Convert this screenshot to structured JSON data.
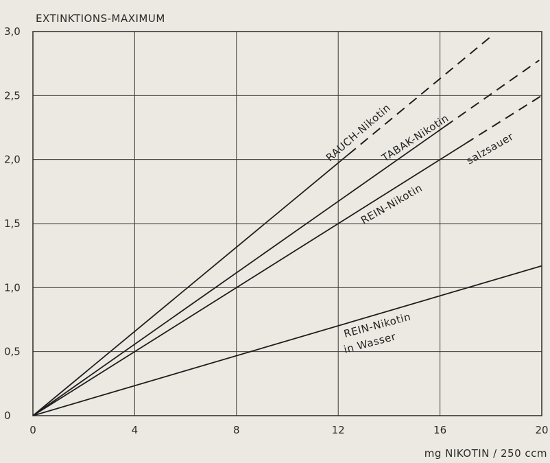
{
  "chart_data": {
    "type": "line",
    "ylabel": "EXTINKTIONS-MAXIMUM",
    "xlabel": "mg  NIKOTIN / 250 ccm",
    "xlim": [
      0,
      20
    ],
    "ylim": [
      0,
      3.0
    ],
    "x_ticks": [
      "0",
      "4",
      "8",
      "12",
      "16",
      "20"
    ],
    "y_ticks": [
      "0",
      "0,5",
      "1,0",
      "1,5",
      "2,0",
      "2,5",
      "3,0"
    ],
    "grid": true,
    "series": [
      {
        "name": "RAUCH-Nikotin",
        "slope": 0.1645,
        "solid_x": [
          0,
          12.4
        ],
        "dashed_x": [
          12.4,
          18.0
        ]
      },
      {
        "name": "TABAK-Nikotin",
        "slope": 0.1395,
        "solid_x": [
          0,
          16.2
        ],
        "dashed_x": [
          16.2,
          19.9
        ]
      },
      {
        "name": "REIN-Nikotin",
        "name_suffix": "salzsauer",
        "slope": 0.125,
        "solid_x": [
          0,
          17.0
        ],
        "dashed_x": [
          17.0,
          20.0
        ]
      },
      {
        "name": "REIN-Nikotin",
        "name_line2": "in Wasser",
        "slope": 0.0585,
        "solid_x": [
          0,
          20
        ],
        "dashed_x": null
      }
    ],
    "labels": {
      "rauch": "RAUCH-Nikotin",
      "tabak": "TABAK-Nikotin",
      "rein_hcl": "REIN-Nikotin",
      "salzsauer": "salzsauer",
      "rein_wasser_1": "REIN-Nikotin",
      "rein_wasser_2": "in Wasser"
    }
  }
}
